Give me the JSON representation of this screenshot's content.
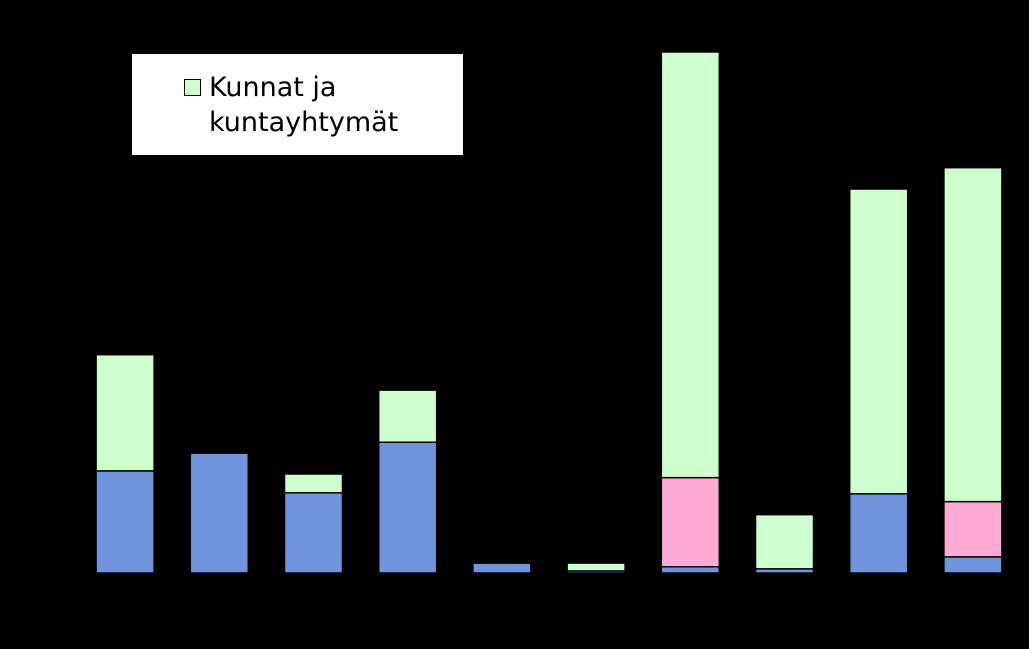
{
  "chart_data": {
    "type": "stacked_bar",
    "series": [
      {
        "color": "#6f93dc",
        "values": [
          19.6,
          23.0,
          15.4,
          25.1,
          1.9,
          0.4,
          1.2,
          0.8,
          15.2,
          3.1
        ]
      },
      {
        "color": "#ffaad4",
        "values": [
          0,
          0,
          0,
          0,
          0,
          0,
          17.1,
          0,
          0,
          10.6
        ]
      },
      {
        "name": "Kunnat ja kuntayhtymät",
        "color": "#ccffcc",
        "values": [
          22.3,
          0,
          3.6,
          10.0,
          0,
          1.5,
          81.7,
          10.4,
          58.5,
          64.1
        ]
      }
    ],
    "ylim": [
      0,
      100
    ]
  }
}
